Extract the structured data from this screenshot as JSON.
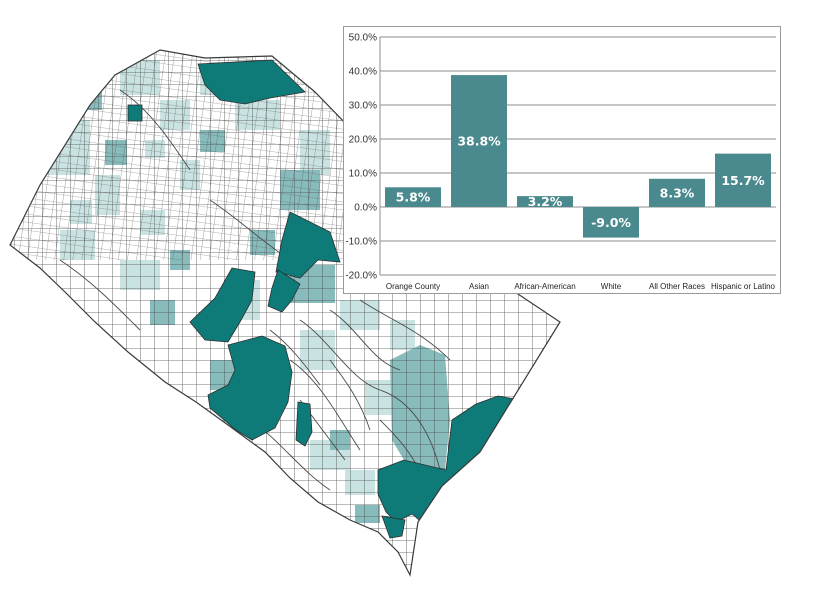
{
  "colors": {
    "bar": "#4a8a8e",
    "map_dark": "#0e7b79",
    "map_mid": "#87bbbc",
    "map_light": "#c9e3e2",
    "map_outline": "#444444"
  },
  "chart_data": {
    "type": "bar",
    "categories": [
      "Orange County",
      "Asian",
      "African-American",
      "White",
      "All Other Races",
      "Hispanic or Latino"
    ],
    "values": [
      5.8,
      38.8,
      3.2,
      -9.0,
      8.3,
      15.7
    ],
    "value_labels": [
      "5.8%",
      "38.8%",
      "3.2%",
      "-9.0%",
      "8.3%",
      "15.7%"
    ],
    "y_ticks": [
      50,
      40,
      30,
      20,
      10,
      0,
      -10,
      -20
    ],
    "y_tick_labels": [
      "50.0%",
      "40.0%",
      "30.0%",
      "20.0%",
      "10.0%",
      "0.0%",
      "-10.0%",
      "-20.0%"
    ],
    "ylim": [
      -20,
      50
    ],
    "grid": true,
    "title": "",
    "xlabel": "",
    "ylabel": ""
  }
}
